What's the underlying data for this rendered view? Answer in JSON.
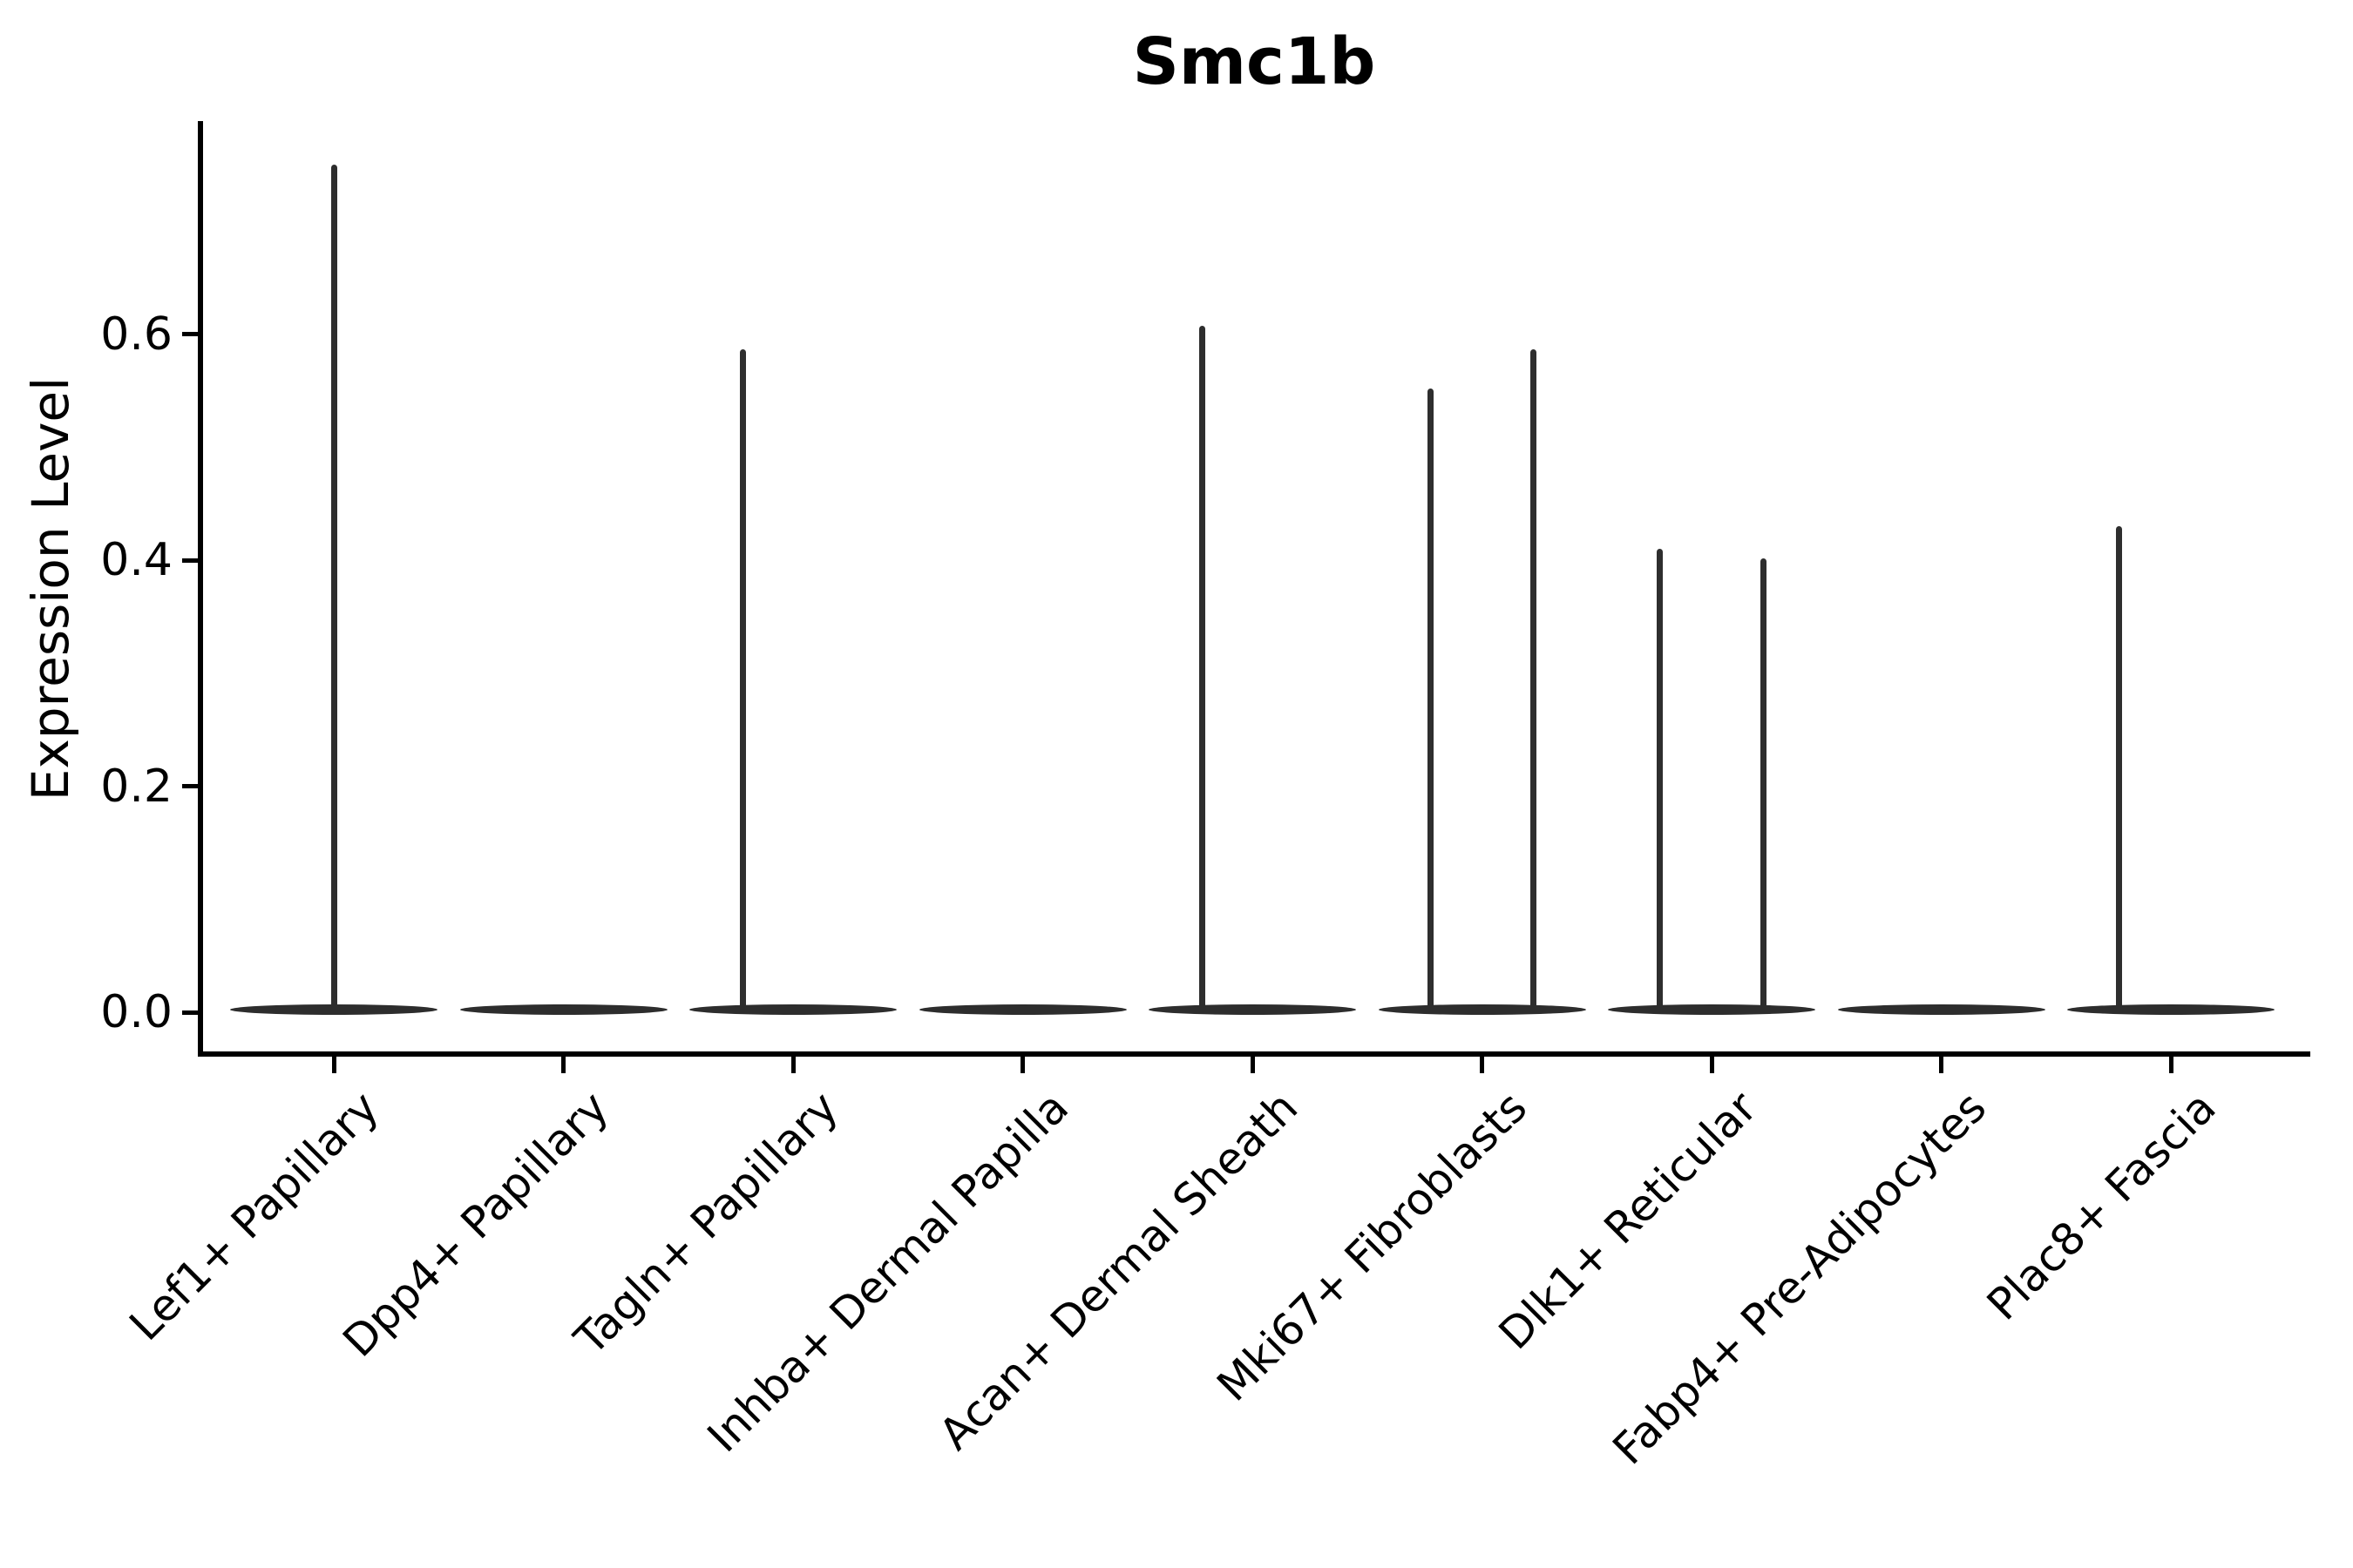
{
  "chart_data": {
    "type": "violin",
    "title": "Smc1b",
    "xlabel": "",
    "ylabel": "Expression Level",
    "ylim": [
      0,
      0.79
    ],
    "yticks": [
      0.0,
      0.2,
      0.4,
      0.6
    ],
    "ytick_labels": [
      "0.0",
      "0.2",
      "0.4",
      "0.6"
    ],
    "grid": false,
    "legend": "none",
    "violin_color": "#2d2d2d",
    "axis_color": "#000000",
    "categories": [
      "Lef1+ Papillary",
      "Dpp4+ Papillary",
      "Tagln+ Papillary",
      "Inhba+ Dermal Papilla",
      "Acan+ Dermal Sheath",
      "Mki67+ Fibroblasts",
      "Dlk1+ Reticular",
      "Fabp4+ Pre-Adipocytes",
      "Plac8+ Fascia"
    ],
    "violins": [
      {
        "category": "Lef1+ Papillary",
        "base_at_zero": true,
        "spikes": [
          {
            "x_offset_frac": 0.0,
            "peak": 0.75
          }
        ]
      },
      {
        "category": "Dpp4+ Papillary",
        "base_at_zero": true,
        "spikes": []
      },
      {
        "category": "Tagln+ Papillary",
        "base_at_zero": true,
        "spikes": [
          {
            "x_offset_frac": -0.22,
            "peak": 0.587
          }
        ]
      },
      {
        "category": "Inhba+ Dermal Papilla",
        "base_at_zero": true,
        "spikes": []
      },
      {
        "category": "Acan+ Dermal Sheath",
        "base_at_zero": true,
        "spikes": [
          {
            "x_offset_frac": -0.22,
            "peak": 0.608
          }
        ]
      },
      {
        "category": "Mki67+ Fibroblasts",
        "base_at_zero": true,
        "spikes": [
          {
            "x_offset_frac": -0.225,
            "peak": 0.552
          },
          {
            "x_offset_frac": 0.225,
            "peak": 0.587
          }
        ]
      },
      {
        "category": "Dlk1+ Reticular",
        "base_at_zero": true,
        "spikes": [
          {
            "x_offset_frac": -0.225,
            "peak": 0.41
          },
          {
            "x_offset_frac": 0.225,
            "peak": 0.402
          }
        ]
      },
      {
        "category": "Fabp4+ Pre-Adipocytes",
        "base_at_zero": true,
        "spikes": []
      },
      {
        "category": "Plac8+ Fascia",
        "base_at_zero": true,
        "spikes": [
          {
            "x_offset_frac": -0.227,
            "peak": 0.43
          }
        ]
      }
    ]
  }
}
